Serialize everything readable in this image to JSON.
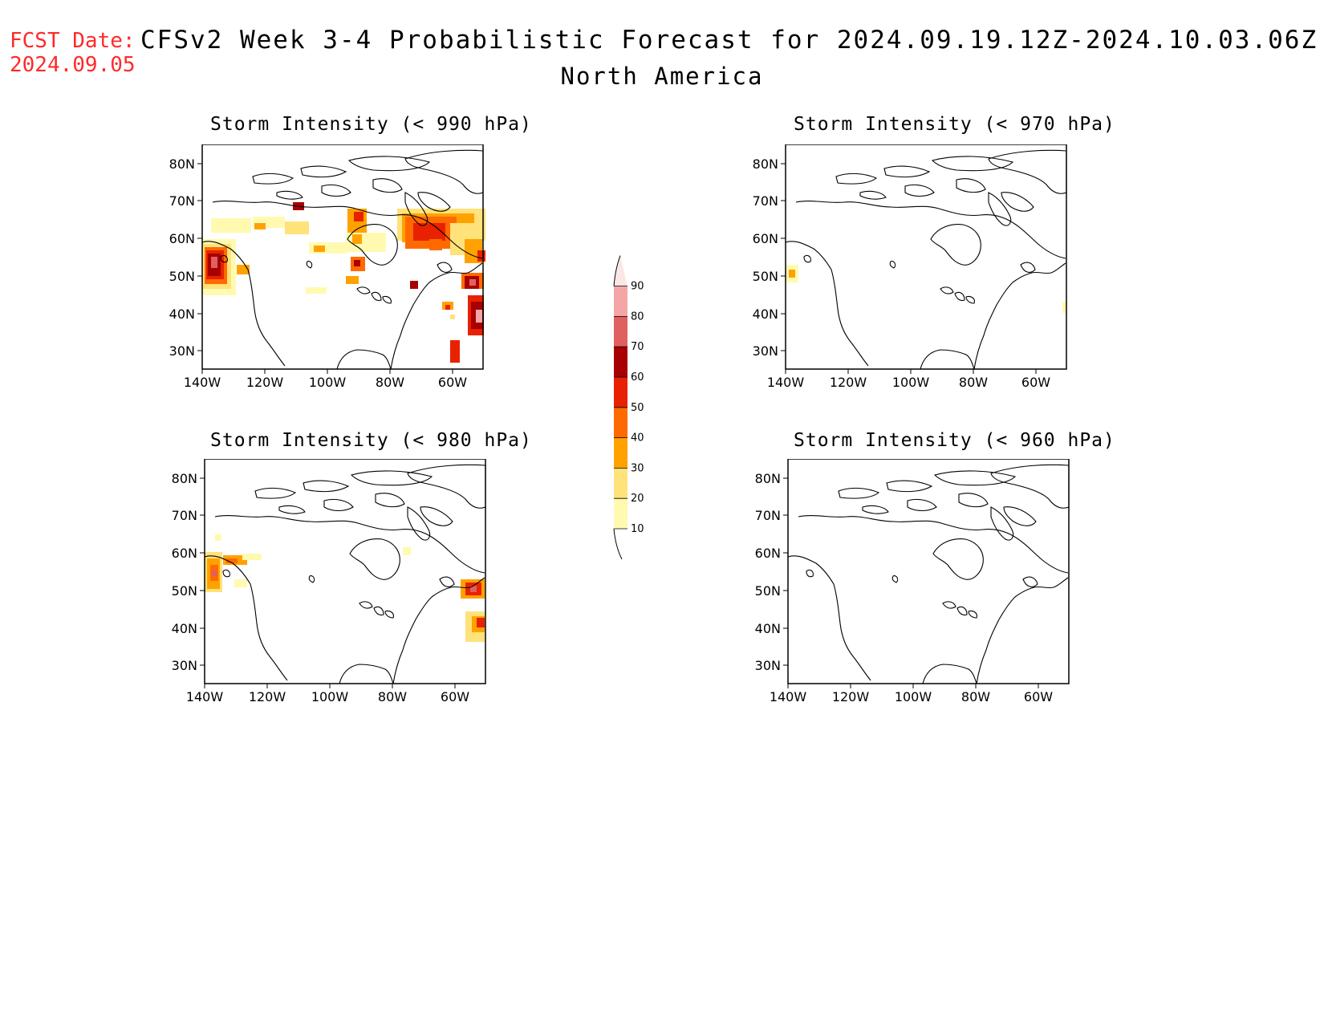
{
  "header": {
    "fcst_label": "FCST Date:",
    "fcst_date": "2024.09.05",
    "title": "CFSv2 Week 3-4 Probabilistic Forecast for 2024.09.19.12Z-2024.10.03.06Z",
    "subtitle": "North America"
  },
  "lat_labels": [
    "80N",
    "70N",
    "60N",
    "50N",
    "40N",
    "30N"
  ],
  "lon_labels": [
    "140W",
    "120W",
    "100W",
    "80W",
    "60W"
  ],
  "panels": [
    {
      "id": "p990",
      "title": "Storm Intensity (< 990 hPa)"
    },
    {
      "id": "p970",
      "title": "Storm Intensity (< 970 hPa)"
    },
    {
      "id": "p980",
      "title": "Storm Intensity (< 980 hPa)"
    },
    {
      "id": "p960",
      "title": "Storm Intensity (< 960 hPa)"
    }
  ],
  "colorbar": {
    "levels": [
      "10",
      "20",
      "30",
      "40",
      "50",
      "60",
      "70",
      "80",
      "90"
    ],
    "colors": [
      "#fffab0",
      "#ffe27a",
      "#ffa200",
      "#ff6a00",
      "#e82200",
      "#a80000",
      "#e06060",
      "#f4a6a6",
      "#fde6e6"
    ]
  }
}
